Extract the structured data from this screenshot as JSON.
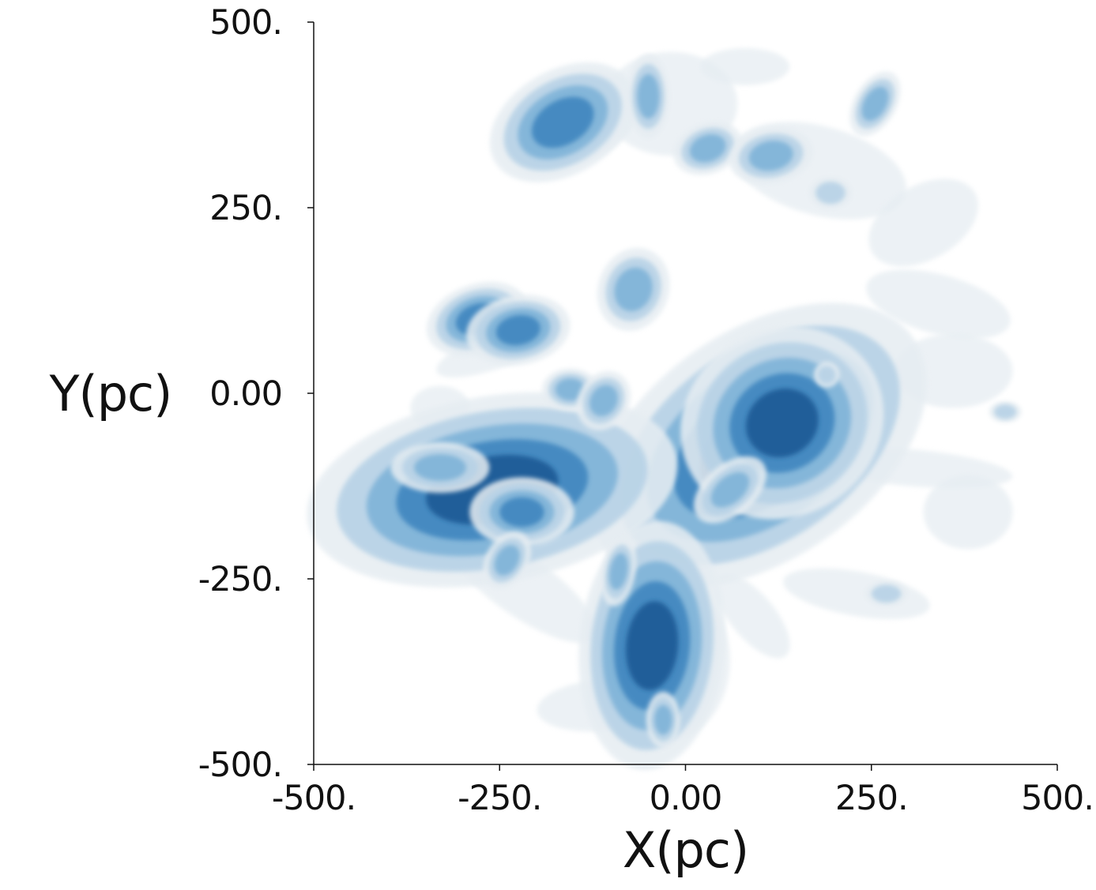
{
  "chart_data": {
    "type": "heatmap",
    "title": "",
    "xlabel": "X(pc)",
    "ylabel": "Y(pc)",
    "xlim": [
      -500,
      500
    ],
    "ylim": [
      -500,
      500
    ],
    "x_ticks": [
      {
        "value": -500,
        "label": "-500."
      },
      {
        "value": -250,
        "label": "-250."
      },
      {
        "value": 0,
        "label": "0.00"
      },
      {
        "value": 250,
        "label": "250."
      },
      {
        "value": 500,
        "label": "500."
      }
    ],
    "y_ticks": [
      {
        "value": 500,
        "label": "500."
      },
      {
        "value": 250,
        "label": "250."
      },
      {
        "value": 0,
        "label": "0.00"
      },
      {
        "value": -250,
        "label": "-250."
      },
      {
        "value": -500,
        "label": "-500."
      }
    ],
    "grid": false,
    "legend": "none",
    "colors": {
      "level1": "#e6edf2",
      "level2": "#b7d2e6",
      "level3": "#7fb3d8",
      "level4": "#3f86bf",
      "level5": "#1b5a95"
    },
    "clouds": [
      {
        "x": 100,
        "y": -70,
        "rx": 90,
        "ry": 55,
        "rot": -35,
        "level": 5
      },
      {
        "x": 130,
        "y": -40,
        "rx": 50,
        "ry": 45,
        "rot": -30,
        "level": 5
      },
      {
        "x": 60,
        "y": -130,
        "rx": 30,
        "ry": 18,
        "rot": -40,
        "level": 3
      },
      {
        "x": -260,
        "y": -130,
        "rx": 90,
        "ry": 45,
        "rot": -10,
        "level": 5
      },
      {
        "x": -330,
        "y": -100,
        "rx": 35,
        "ry": 18,
        "rot": 0,
        "level": 3
      },
      {
        "x": -220,
        "y": -160,
        "rx": 30,
        "ry": 20,
        "rot": 0,
        "level": 4
      },
      {
        "x": -45,
        "y": -340,
        "rx": 35,
        "ry": 60,
        "rot": 5,
        "level": 5
      },
      {
        "x": -90,
        "y": -240,
        "rx": 12,
        "ry": 25,
        "rot": 10,
        "level": 3
      },
      {
        "x": -30,
        "y": -440,
        "rx": 12,
        "ry": 20,
        "rot": 0,
        "level": 3
      },
      {
        "x": -280,
        "y": 100,
        "rx": 30,
        "ry": 20,
        "rot": -20,
        "level": 4
      },
      {
        "x": -225,
        "y": 85,
        "rx": 30,
        "ry": 20,
        "rot": -10,
        "level": 4
      },
      {
        "x": -155,
        "y": 5,
        "rx": 20,
        "ry": 15,
        "rot": 0,
        "level": 3
      },
      {
        "x": -110,
        "y": -10,
        "rx": 18,
        "ry": 22,
        "rot": 30,
        "level": 3
      },
      {
        "x": -70,
        "y": 140,
        "rx": 25,
        "ry": 30,
        "rot": 20,
        "level": 3
      },
      {
        "x": -165,
        "y": 365,
        "rx": 45,
        "ry": 30,
        "rot": -30,
        "level": 4
      },
      {
        "x": -50,
        "y": 400,
        "rx": 15,
        "ry": 30,
        "rot": 0,
        "level": 3
      },
      {
        "x": 30,
        "y": 330,
        "rx": 25,
        "ry": 18,
        "rot": -20,
        "level": 3
      },
      {
        "x": 115,
        "y": 320,
        "rx": 30,
        "ry": 20,
        "rot": -10,
        "level": 3
      },
      {
        "x": 255,
        "y": 390,
        "rx": 15,
        "ry": 25,
        "rot": 30,
        "level": 3
      },
      {
        "x": 195,
        "y": 270,
        "rx": 20,
        "ry": 15,
        "rot": 0,
        "level": 2
      },
      {
        "x": -240,
        "y": -225,
        "rx": 15,
        "ry": 22,
        "rot": 30,
        "level": 3
      },
      {
        "x": 190,
        "y": 25,
        "rx": 12,
        "ry": 12,
        "rot": 0,
        "level": 2
      },
      {
        "x": 430,
        "y": -25,
        "rx": 15,
        "ry": 10,
        "rot": 0,
        "level": 2
      },
      {
        "x": 270,
        "y": -270,
        "rx": 20,
        "ry": 12,
        "rot": 0,
        "level": 2
      }
    ],
    "filaments": [
      {
        "x": 10,
        "y": -180,
        "rx": 150,
        "ry": 22,
        "rot": -40
      },
      {
        "x": 300,
        "y": -100,
        "rx": 140,
        "ry": 25,
        "rot": 5
      },
      {
        "x": -220,
        "y": -260,
        "rx": 120,
        "ry": 40,
        "rot": 35
      },
      {
        "x": -110,
        "y": -420,
        "rx": 90,
        "ry": 35,
        "rot": -5
      },
      {
        "x": 90,
        "y": -300,
        "rx": 70,
        "ry": 30,
        "rot": 50
      },
      {
        "x": 230,
        "y": -270,
        "rx": 100,
        "ry": 30,
        "rot": 10
      },
      {
        "x": -330,
        "y": -20,
        "rx": 40,
        "ry": 30,
        "rot": 0
      },
      {
        "x": -250,
        "y": 60,
        "rx": 90,
        "ry": 25,
        "rot": -20
      },
      {
        "x": -150,
        "y": 370,
        "rx": 90,
        "ry": 60,
        "rot": -20
      },
      {
        "x": -20,
        "y": 390,
        "rx": 90,
        "ry": 70,
        "rot": 0
      },
      {
        "x": 180,
        "y": 300,
        "rx": 120,
        "ry": 60,
        "rot": 15
      },
      {
        "x": 320,
        "y": 230,
        "rx": 80,
        "ry": 50,
        "rot": -30
      },
      {
        "x": 340,
        "y": 120,
        "rx": 100,
        "ry": 40,
        "rot": 15
      },
      {
        "x": 360,
        "y": 30,
        "rx": 80,
        "ry": 50,
        "rot": 0
      },
      {
        "x": 380,
        "y": -160,
        "rx": 60,
        "ry": 50,
        "rot": 0
      },
      {
        "x": 80,
        "y": 440,
        "rx": 60,
        "ry": 25,
        "rot": 0
      },
      {
        "x": -30,
        "y": -360,
        "rx": 90,
        "ry": 110,
        "rot": 0
      },
      {
        "x": 0,
        "y": -240,
        "rx": 40,
        "ry": 20,
        "rot": -30
      }
    ]
  }
}
